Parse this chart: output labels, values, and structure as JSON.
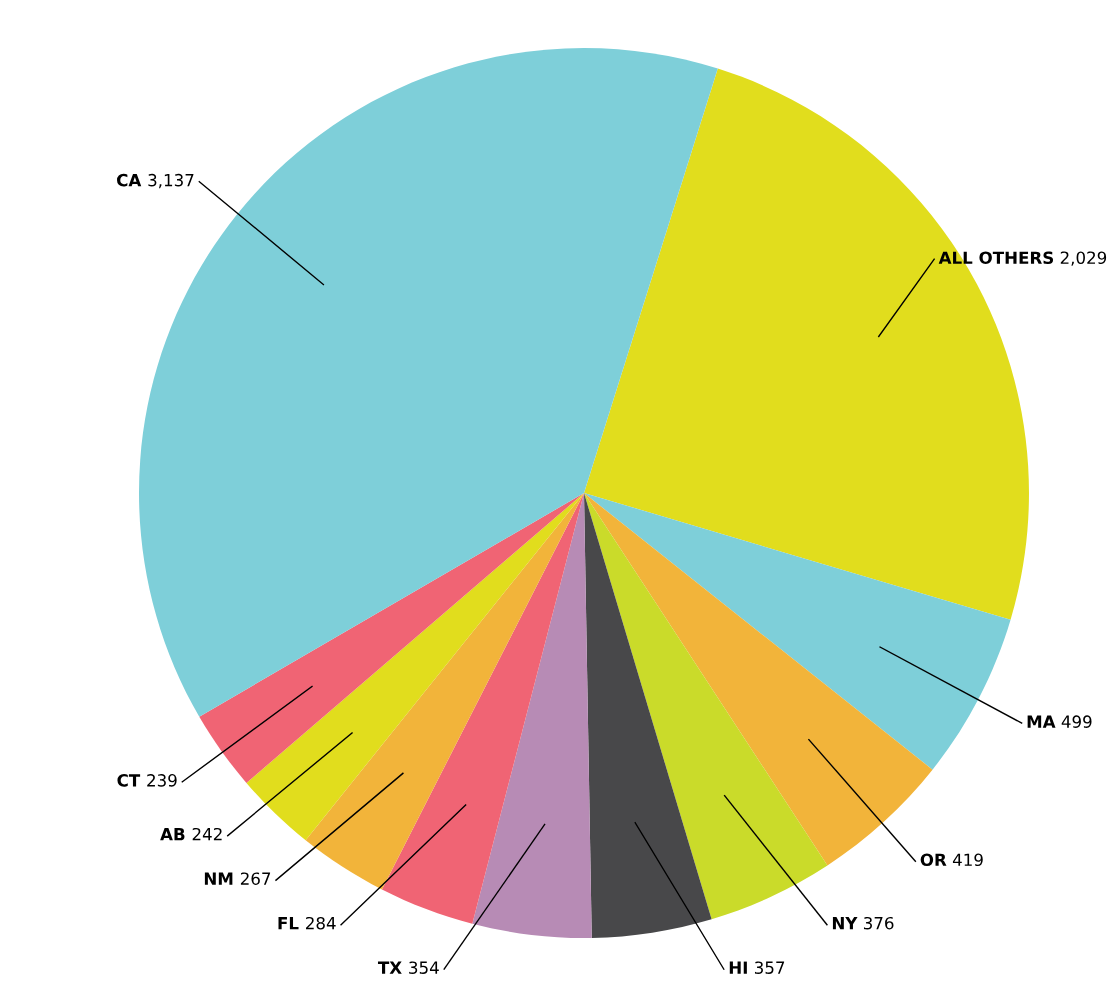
{
  "chart_data": {
    "type": "pie",
    "categories": [
      "ALL OTHERS",
      "MA",
      "OR",
      "NY",
      "HI",
      "TX",
      "FL",
      "NM",
      "AB",
      "CT",
      "CA"
    ],
    "values": [
      2029,
      499,
      419,
      376,
      357,
      354,
      284,
      267,
      242,
      239,
      3137
    ],
    "value_labels": [
      "2,029",
      "499",
      "419",
      "376",
      "357",
      "354",
      "284",
      "267",
      "242",
      "239",
      "3,137"
    ],
    "colors": [
      "#e1dd1d",
      "#7ecfd9",
      "#f2b43a",
      "#cadb2a",
      "#48484a",
      "#b78bb5",
      "#f06474",
      "#f2b43a",
      "#e1dd1d",
      "#f06474",
      "#7ecfd9"
    ]
  }
}
